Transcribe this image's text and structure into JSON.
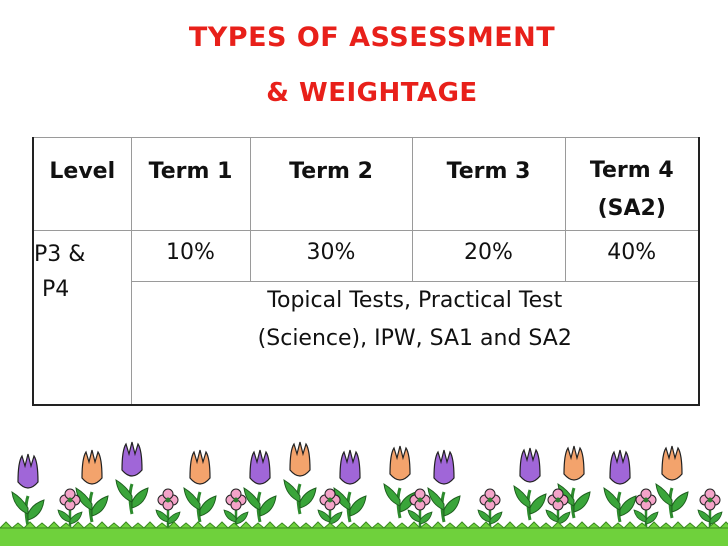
{
  "title": {
    "line1": "TYPES OF ASSESSMENT",
    "line2": "& WEIGHTAGE"
  },
  "table": {
    "headers": [
      "Level",
      "Term 1",
      "Term 2",
      "Term 3",
      "Term 4"
    ],
    "header_term4_sub": "(SA2)",
    "level_line1": "P3 &",
    "level_line2": "P4",
    "weights": [
      "10%",
      "30%",
      "20%",
      "40%"
    ],
    "description_line1": "Topical Tests, Practical Test",
    "description_line2": "(Science), IPW, SA1 and SA2"
  },
  "colors": {
    "title": "#e8201a",
    "purple_tulip": "#a066d8",
    "orange_tulip": "#f3a36c",
    "pink_flower": "#f4a3c8",
    "stem": "#2c8a2c",
    "grass": "#6fd13c"
  },
  "icons": [
    "tulip-icon",
    "pink-flower-icon",
    "grass-icon"
  ]
}
